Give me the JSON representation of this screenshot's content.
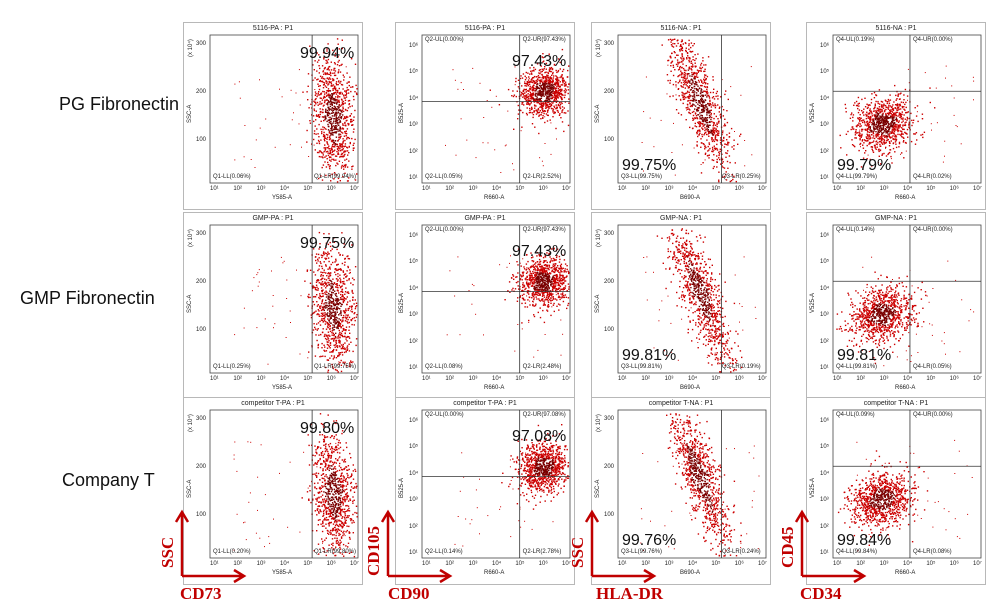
{
  "row_labels": [
    "PG Fibronectin",
    "GMP Fibronectin",
    "Company T"
  ],
  "colors": {
    "dots": "#cc0000",
    "dots_dense": "#7a0000",
    "marker": "#c00000",
    "gate_line": "#333333"
  },
  "markers": {
    "CD73": {
      "x": "CD73",
      "y": "SSC"
    },
    "CD105_CD90": {
      "x": "CD90",
      "y": "CD105"
    },
    "HLA_DR": {
      "x": "HLA-DR",
      "y": "SSC"
    },
    "CD45_CD34": {
      "x": "CD34",
      "y": "CD45"
    }
  },
  "tick_labels": {
    "x_log": [
      "10¹",
      "10²",
      "10³",
      "10⁴",
      "10⁵",
      "10⁶",
      "10⁷"
    ],
    "y_log": [
      "10¹",
      "10²",
      "10³",
      "10⁴",
      "10⁵",
      "10⁶"
    ],
    "y_lin": [
      "100",
      "200",
      "300"
    ],
    "y_lin_unit": "(x 10⁴)"
  },
  "plots": [
    {
      "title": "5116-PA : P1",
      "x_axis": "Y585-A",
      "y_axis": "SSC-A",
      "percent": "99.94%",
      "quad": {
        "ll": "Q1-LL(0.06%)",
        "lr": "Q1-LR(99.94%)"
      }
    },
    {
      "title": "5116-PA : P1",
      "x_axis": "R660-A",
      "y_axis": "B525-A",
      "percent": "97.43%",
      "quad": {
        "ul": "Q2-UL(0.00%)",
        "ur": "Q2-UR(97.43%)",
        "ll": "Q2-LL(0.05%)",
        "lr": "Q2-LR(2.52%)"
      }
    },
    {
      "title": "5116-NA : P1",
      "x_axis": "B690-A",
      "y_axis": "SSC-A",
      "percent": "99.75%",
      "quad": {
        "ll": "Q3-LL(99.75%)",
        "lr": "Q3-LR(0.25%)"
      }
    },
    {
      "title": "5116-NA : P1",
      "x_axis": "R660-A",
      "y_axis": "V525-A",
      "percent": "99.79%",
      "quad": {
        "ul": "Q4-UL(0.19%)",
        "ur": "Q4-UR(0.00%)",
        "ll": "Q4-LL(99.79%)",
        "lr": "Q4-LR(0.02%)"
      }
    },
    {
      "title": "GMP-PA : P1",
      "x_axis": "Y585-A",
      "y_axis": "SSC-A",
      "percent": "99.75%",
      "quad": {
        "ll": "Q1-LL(0.25%)",
        "lr": "Q1-LR(99.75%)"
      }
    },
    {
      "title": "GMP-PA : P1",
      "x_axis": "R660-A",
      "y_axis": "B525-A",
      "percent": "97.43%",
      "quad": {
        "ul": "Q2-UL(0.00%)",
        "ur": "Q2-UR(97.43%)",
        "ll": "Q2-LL(0.08%)",
        "lr": "Q2-LR(2.48%)"
      }
    },
    {
      "title": "GMP-NA : P1",
      "x_axis": "B690-A",
      "y_axis": "SSC-A",
      "percent": "99.81%",
      "quad": {
        "ll": "Q3-LL(99.81%)",
        "lr": "Q3-LR(0.19%)"
      }
    },
    {
      "title": "GMP-NA : P1",
      "x_axis": "R660-A",
      "y_axis": "V525-A",
      "percent": "99.81%",
      "quad": {
        "ul": "Q4-UL(0.14%)",
        "ur": "Q4-UR(0.00%)",
        "ll": "Q4-LL(99.81%)",
        "lr": "Q4-LR(0.05%)"
      }
    },
    {
      "title": "competitor T-PA : P1",
      "x_axis": "Y585-A",
      "y_axis": "SSC-A",
      "percent": "99.80%",
      "quad": {
        "ll": "Q1-LL(0.20%)",
        "lr": "Q1-LR(99.80%)"
      }
    },
    {
      "title": "competitor T-PA : P1",
      "x_axis": "R660-A",
      "y_axis": "B525-A",
      "percent": "97.08%",
      "quad": {
        "ul": "Q2-UL(0.00%)",
        "ur": "Q2-UR(97.08%)",
        "ll": "Q2-LL(0.14%)",
        "lr": "Q2-LR(2.78%)"
      }
    },
    {
      "title": "competitor T-NA : P1",
      "x_axis": "B690-A",
      "y_axis": "SSC-A",
      "percent": "99.76%",
      "quad": {
        "ll": "Q3-LL(99.76%)",
        "lr": "Q3-LR(0.24%)"
      }
    },
    {
      "title": "competitor T-NA : P1",
      "x_axis": "R660-A",
      "y_axis": "V525-A",
      "percent": "99.84%",
      "quad": {
        "ul": "Q4-UL(0.09%)",
        "ur": "Q4-UR(0.00%)",
        "ll": "Q4-LL(99.84%)",
        "lr": "Q4-LR(0.08%)"
      }
    }
  ]
}
